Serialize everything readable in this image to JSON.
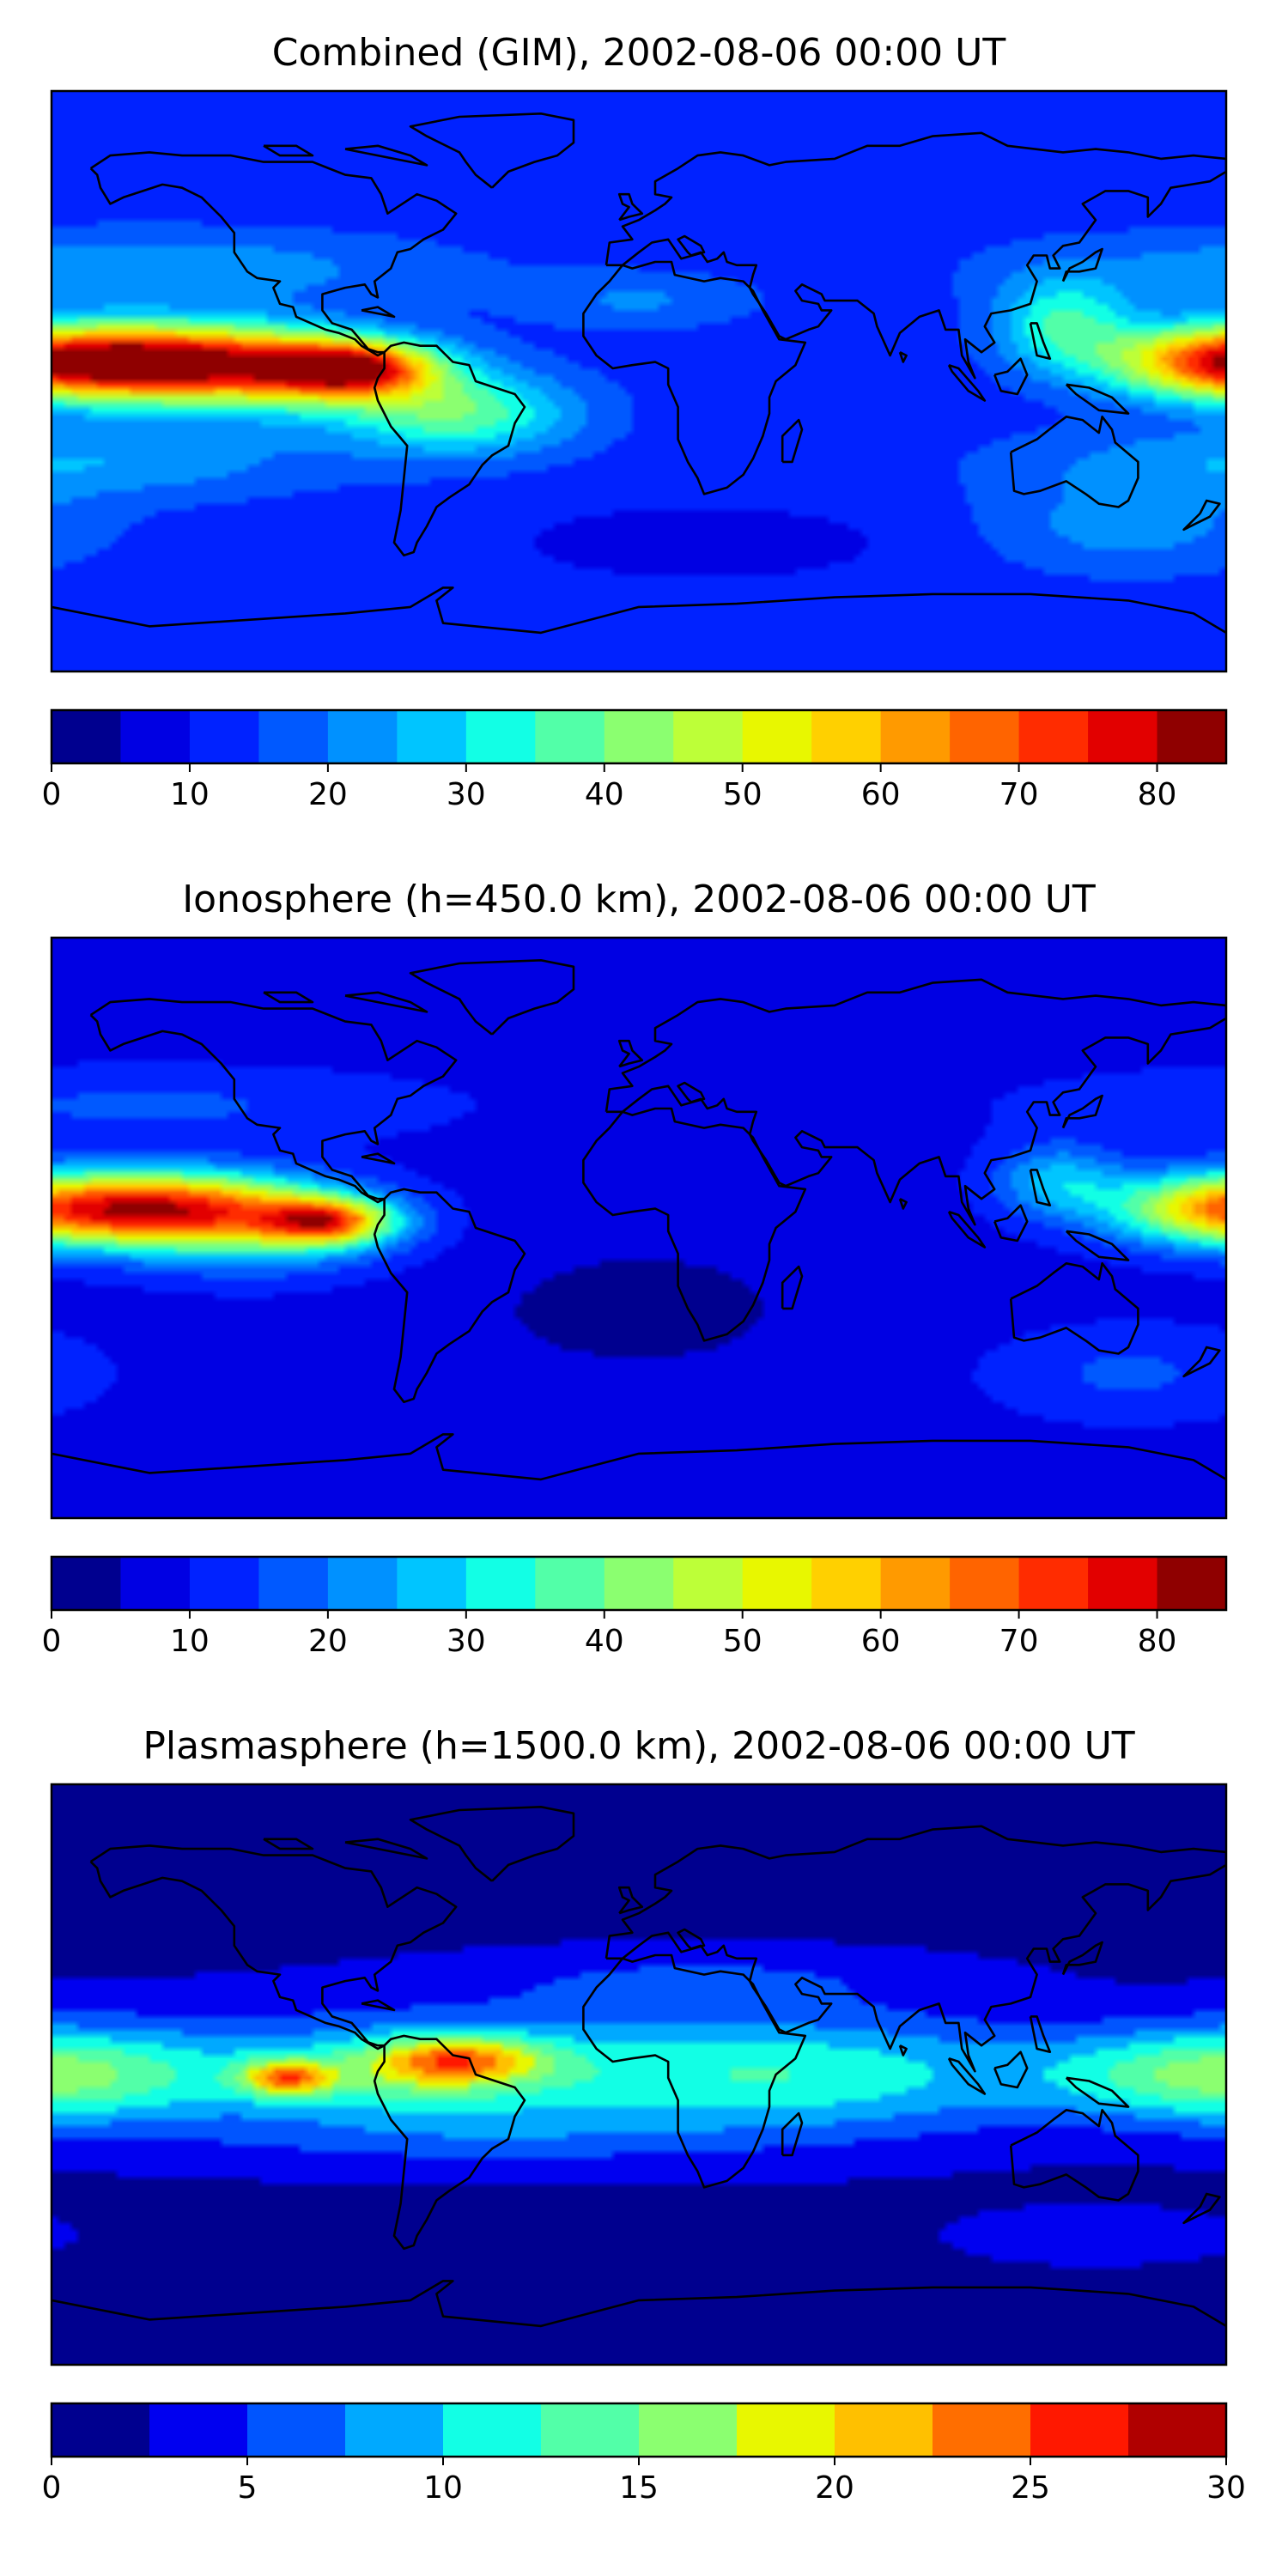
{
  "chart_data": [
    {
      "type": "heatmap",
      "title": "Combined (GIM), 2002-08-06 00:00 UT",
      "colorbar": {
        "ticks": [
          "0",
          "10",
          "20",
          "30",
          "40",
          "50",
          "60",
          "70",
          "80"
        ],
        "vmin": 0,
        "vmax": 85,
        "step": 5,
        "colors": [
          "#00008f",
          "#0000e3",
          "#0022ff",
          "#0059ff",
          "#0091ff",
          "#00c5ff",
          "#12ffe5",
          "#52ffa8",
          "#8bff70",
          "#bdff38",
          "#e8f700",
          "#ffd000",
          "#ff9a00",
          "#ff6400",
          "#ff2c00",
          "#e20000",
          "#8f0000"
        ]
      },
      "field": {
        "background": 12.5,
        "bumps": [
          {
            "lon": -140,
            "lat": 6,
            "slon": 30,
            "slat": 8,
            "amp": 55
          },
          {
            "lon": -88,
            "lat": 4,
            "slon": 18,
            "slat": 6,
            "amp": 52
          },
          {
            "lon": -110,
            "lat": 2,
            "slon": 34,
            "slat": 10,
            "amp": 20
          },
          {
            "lon": -55,
            "lat": -10,
            "slon": 25,
            "slat": 9,
            "amp": 25
          },
          {
            "lon": 178,
            "lat": 6,
            "slon": 25,
            "slat": 8,
            "amp": 48
          },
          {
            "lon": 130,
            "lat": 18,
            "slon": 15,
            "slat": 10,
            "amp": 22
          },
          {
            "lon": -150,
            "lat": 35,
            "slon": 60,
            "slat": 8,
            "amp": 12
          },
          {
            "lon": -170,
            "lat": -25,
            "slon": 50,
            "slat": 8,
            "amp": 12
          },
          {
            "lon": 0,
            "lat": 25,
            "slon": 25,
            "slat": 6,
            "amp": 8
          },
          {
            "lon": 20,
            "lat": -50,
            "slon": 40,
            "slat": 8,
            "amp": -6
          },
          {
            "lon": 150,
            "lat": -45,
            "slon": 30,
            "slat": 10,
            "amp": 10
          }
        ]
      }
    },
    {
      "type": "heatmap",
      "title": "Ionosphere  (h=450.0 km), 2002-08-06 00:00 UT",
      "colorbar": {
        "ticks": [
          "0",
          "10",
          "20",
          "30",
          "40",
          "50",
          "60",
          "70",
          "80"
        ],
        "vmin": 0,
        "vmax": 85,
        "step": 5,
        "colors": [
          "#00008f",
          "#0000e3",
          "#0022ff",
          "#0059ff",
          "#0091ff",
          "#00c5ff",
          "#12ffe5",
          "#52ffa8",
          "#8bff70",
          "#bdff38",
          "#e8f700",
          "#ffd000",
          "#ff9a00",
          "#ff6400",
          "#ff2c00",
          "#e20000",
          "#8f0000"
        ]
      },
      "field": {
        "background": 8,
        "bumps": [
          {
            "lon": -140,
            "lat": 6,
            "slon": 28,
            "slat": 8,
            "amp": 50
          },
          {
            "lon": -95,
            "lat": 2,
            "slon": 14,
            "slat": 5,
            "amp": 45
          },
          {
            "lon": -115,
            "lat": 0,
            "slon": 30,
            "slat": 10,
            "amp": 20
          },
          {
            "lon": 178,
            "lat": 6,
            "slon": 25,
            "slat": 8,
            "amp": 43
          },
          {
            "lon": 128,
            "lat": 15,
            "slon": 14,
            "slat": 8,
            "amp": 18
          },
          {
            "lon": -150,
            "lat": 38,
            "slon": 60,
            "slat": 8,
            "amp": 8
          },
          {
            "lon": 0,
            "lat": -25,
            "slon": 50,
            "slat": 20,
            "amp": -4
          },
          {
            "lon": 150,
            "lat": -45,
            "slon": 30,
            "slat": 10,
            "amp": 8
          }
        ]
      }
    },
    {
      "type": "heatmap",
      "title": "Plasmasphere (h=1500.0 km), 2002-08-06 00:00 UT",
      "colorbar": {
        "ticks": [
          "0",
          "5",
          "10",
          "15",
          "20",
          "25",
          "30"
        ],
        "vmin": 0,
        "vmax": 30,
        "step": 2.5,
        "colors": [
          "#00008f",
          "#0000f0",
          "#0055ff",
          "#00a9ff",
          "#12ffe5",
          "#52ffa8",
          "#8bff70",
          "#e8f700",
          "#ffc000",
          "#ff6e00",
          "#ff1800",
          "#b00000"
        ]
      },
      "field": {
        "background": 2,
        "bumps": [
          {
            "lon": -30,
            "lat": 0,
            "slon": 100,
            "slat": 14,
            "amp": 9
          },
          {
            "lon": -108,
            "lat": -1,
            "slon": 10,
            "slat": 4,
            "amp": 14
          },
          {
            "lon": -55,
            "lat": 5,
            "slon": 18,
            "slat": 5,
            "amp": 12
          },
          {
            "lon": -70,
            "lat": 0,
            "slon": 25,
            "slat": 7,
            "amp": 5
          },
          {
            "lon": 175,
            "lat": 0,
            "slon": 35,
            "slat": 10,
            "amp": 12
          },
          {
            "lon": 60,
            "lat": 0,
            "slon": 40,
            "slat": 12,
            "amp": 4
          },
          {
            "lon": -50,
            "lat": -20,
            "slon": 60,
            "slat": 6,
            "amp": 2
          },
          {
            "lon": 20,
            "lat": 30,
            "slon": 50,
            "slat": 6,
            "amp": 3
          },
          {
            "lon": 140,
            "lat": -50,
            "slon": 40,
            "slat": 8,
            "amp": 1
          }
        ]
      }
    }
  ]
}
